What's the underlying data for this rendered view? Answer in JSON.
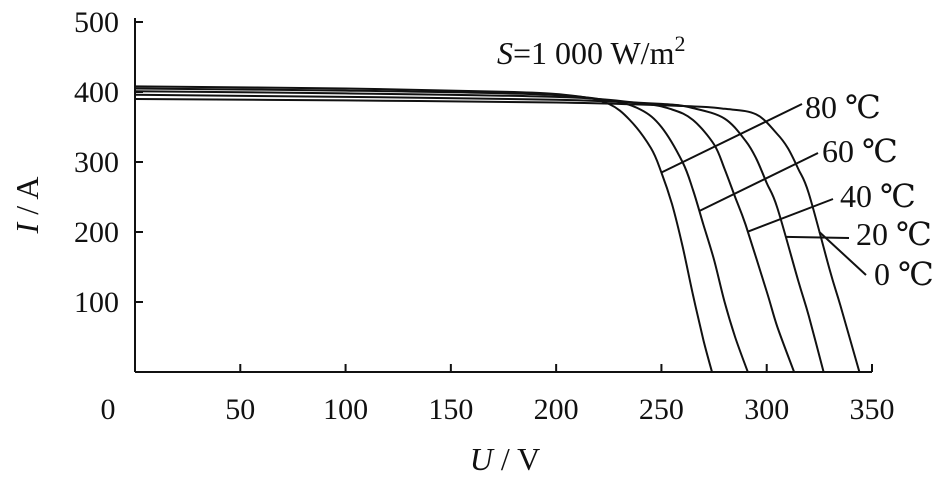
{
  "chart_data": {
    "type": "line",
    "title": "",
    "annotation": {
      "symbol": "S",
      "text": "=1 000 W/m",
      "superscript": "2"
    },
    "xlabel": {
      "symbol": "U",
      "unit": " / V"
    },
    "ylabel": {
      "symbol": "I",
      "unit": " / A"
    },
    "xlim": [
      0,
      350
    ],
    "ylim": [
      0,
      500
    ],
    "xticks": [
      0,
      50,
      100,
      150,
      200,
      250,
      300,
      350
    ],
    "xtick_labels": [
      "0",
      "50",
      "100",
      "150",
      "200",
      "250",
      "300",
      "350"
    ],
    "yticks": [
      100,
      200,
      300,
      400,
      500
    ],
    "ytick_labels": [
      "100",
      "200",
      "300",
      "400",
      "500"
    ],
    "grid": false,
    "series": [
      {
        "name": "80 ℃",
        "x": [
          0,
          100,
          180,
          210,
          225,
          235,
          245,
          250,
          255,
          260,
          265,
          270,
          274
        ],
        "y": [
          408,
          405,
          400,
          394,
          383,
          360,
          320,
          285,
          240,
          180,
          110,
          45,
          0
        ]
      },
      {
        "name": "60 ℃",
        "x": [
          0,
          100,
          190,
          225,
          240,
          250,
          260,
          265,
          270,
          275,
          280,
          285,
          291
        ],
        "y": [
          405,
          402,
          397,
          388,
          375,
          350,
          300,
          260,
          210,
          160,
          100,
          50,
          0
        ]
      },
      {
        "name": "40 ℃",
        "x": [
          0,
          100,
          200,
          240,
          255,
          265,
          275,
          280,
          285,
          290,
          300,
          305,
          313
        ],
        "y": [
          401,
          398,
          393,
          384,
          375,
          360,
          325,
          290,
          250,
          210,
          115,
          65,
          0
        ]
      },
      {
        "name": "20 ℃",
        "x": [
          0,
          100,
          200,
          250,
          265,
          280,
          290,
          295,
          300,
          305,
          315,
          320,
          327
        ],
        "y": [
          396,
          393,
          389,
          383,
          377,
          362,
          330,
          305,
          270,
          235,
          130,
          80,
          0
        ]
      },
      {
        "name": "0 ℃",
        "x": [
          0,
          100,
          200,
          260,
          280,
          295,
          305,
          310,
          315,
          320,
          330,
          335,
          344
        ],
        "y": [
          390,
          388,
          385,
          380,
          376,
          368,
          340,
          320,
          290,
          255,
          145,
          95,
          0
        ]
      }
    ]
  }
}
